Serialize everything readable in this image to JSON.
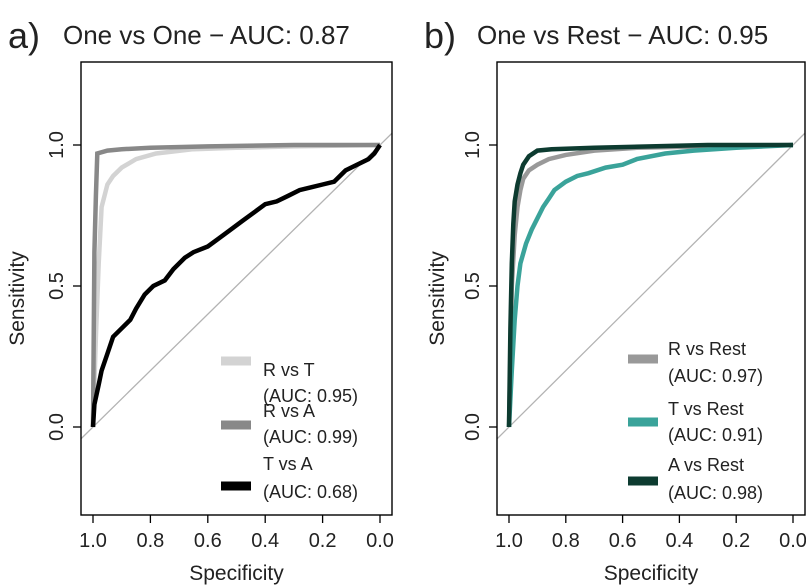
{
  "chart_data": [
    {
      "type": "line",
      "panel": "a)",
      "title": "One vs One − AUC: 0.87",
      "xlabel": "Specificity",
      "ylabel": "Sensitivity",
      "xlim": [
        1.0,
        0.0
      ],
      "ylim": [
        0.0,
        1.0
      ],
      "x_reversed": true,
      "x_ticks": [
        "1.0",
        "0.8",
        "0.6",
        "0.4",
        "0.2",
        "0.0"
      ],
      "y_ticks": [
        "0.0",
        "0.5",
        "1.0"
      ],
      "reference_line": true,
      "legend_position": "bottom-right",
      "series": [
        {
          "name": "R vs T",
          "auc_label": "(AUC: 0.95)",
          "color": "#d3d3d3",
          "points": [
            [
              1.0,
              0.0
            ],
            [
              0.99,
              0.32
            ],
            [
              0.98,
              0.58
            ],
            [
              0.97,
              0.78
            ],
            [
              0.96,
              0.82
            ],
            [
              0.95,
              0.86
            ],
            [
              0.93,
              0.89
            ],
            [
              0.9,
              0.92
            ],
            [
              0.85,
              0.95
            ],
            [
              0.78,
              0.97
            ],
            [
              0.65,
              0.985
            ],
            [
              0.5,
              0.99
            ],
            [
              0.3,
              0.995
            ],
            [
              0.0,
              1.0
            ]
          ]
        },
        {
          "name": "R vs A",
          "auc_label": "(AUC: 0.99)",
          "color": "#888888",
          "points": [
            [
              1.0,
              0.0
            ],
            [
              0.995,
              0.62
            ],
            [
              0.99,
              0.82
            ],
            [
              0.985,
              0.97
            ],
            [
              0.95,
              0.98
            ],
            [
              0.9,
              0.985
            ],
            [
              0.8,
              0.99
            ],
            [
              0.6,
              0.995
            ],
            [
              0.3,
              1.0
            ],
            [
              0.0,
              1.0
            ]
          ]
        },
        {
          "name": "T vs A",
          "auc_label": "(AUC: 0.68)",
          "color": "#000000",
          "points": [
            [
              1.0,
              0.0
            ],
            [
              0.995,
              0.08
            ],
            [
              0.98,
              0.15
            ],
            [
              0.97,
              0.2
            ],
            [
              0.95,
              0.26
            ],
            [
              0.93,
              0.32
            ],
            [
              0.9,
              0.35
            ],
            [
              0.87,
              0.38
            ],
            [
              0.85,
              0.42
            ],
            [
              0.82,
              0.47
            ],
            [
              0.79,
              0.5
            ],
            [
              0.75,
              0.52
            ],
            [
              0.72,
              0.56
            ],
            [
              0.68,
              0.6
            ],
            [
              0.65,
              0.62
            ],
            [
              0.6,
              0.64
            ],
            [
              0.56,
              0.67
            ],
            [
              0.52,
              0.7
            ],
            [
              0.48,
              0.73
            ],
            [
              0.44,
              0.76
            ],
            [
              0.4,
              0.79
            ],
            [
              0.36,
              0.8
            ],
            [
              0.32,
              0.82
            ],
            [
              0.28,
              0.84
            ],
            [
              0.24,
              0.85
            ],
            [
              0.2,
              0.86
            ],
            [
              0.16,
              0.87
            ],
            [
              0.12,
              0.91
            ],
            [
              0.08,
              0.93
            ],
            [
              0.04,
              0.95
            ],
            [
              0.02,
              0.97
            ],
            [
              0.0,
              1.0
            ]
          ]
        }
      ]
    },
    {
      "type": "line",
      "panel": "b)",
      "title": "One vs Rest − AUC: 0.95",
      "xlabel": "Specificity",
      "ylabel": "Sensitivity",
      "xlim": [
        1.0,
        0.0
      ],
      "ylim": [
        0.0,
        1.0
      ],
      "x_reversed": true,
      "x_ticks": [
        "1.0",
        "0.8",
        "0.6",
        "0.4",
        "0.2",
        "0.0"
      ],
      "y_ticks": [
        "0.0",
        "0.5",
        "1.0"
      ],
      "reference_line": true,
      "legend_position": "bottom-right",
      "series": [
        {
          "name": "R vs Rest",
          "auc_label": "(AUC: 0.97)",
          "color": "#999999",
          "points": [
            [
              1.0,
              0.0
            ],
            [
              0.995,
              0.25
            ],
            [
              0.99,
              0.5
            ],
            [
              0.98,
              0.68
            ],
            [
              0.97,
              0.78
            ],
            [
              0.96,
              0.84
            ],
            [
              0.95,
              0.88
            ],
            [
              0.93,
              0.91
            ],
            [
              0.9,
              0.93
            ],
            [
              0.86,
              0.95
            ],
            [
              0.8,
              0.965
            ],
            [
              0.7,
              0.98
            ],
            [
              0.55,
              0.99
            ],
            [
              0.3,
              0.995
            ],
            [
              0.0,
              1.0
            ]
          ]
        },
        {
          "name": "T vs Rest",
          "auc_label": "(AUC: 0.91)",
          "color": "#3aa39a",
          "points": [
            [
              1.0,
              0.0
            ],
            [
              0.99,
              0.2
            ],
            [
              0.98,
              0.38
            ],
            [
              0.97,
              0.5
            ],
            [
              0.96,
              0.58
            ],
            [
              0.94,
              0.65
            ],
            [
              0.92,
              0.7
            ],
            [
              0.9,
              0.74
            ],
            [
              0.88,
              0.78
            ],
            [
              0.86,
              0.81
            ],
            [
              0.84,
              0.84
            ],
            [
              0.8,
              0.87
            ],
            [
              0.76,
              0.89
            ],
            [
              0.72,
              0.9
            ],
            [
              0.66,
              0.92
            ],
            [
              0.6,
              0.93
            ],
            [
              0.55,
              0.95
            ],
            [
              0.45,
              0.97
            ],
            [
              0.35,
              0.98
            ],
            [
              0.2,
              0.99
            ],
            [
              0.0,
              1.0
            ]
          ]
        },
        {
          "name": "A vs Rest",
          "auc_label": "(AUC: 0.98)",
          "color": "#0d3b30",
          "points": [
            [
              1.0,
              0.0
            ],
            [
              0.995,
              0.35
            ],
            [
              0.99,
              0.58
            ],
            [
              0.985,
              0.72
            ],
            [
              0.98,
              0.8
            ],
            [
              0.97,
              0.86
            ],
            [
              0.96,
              0.9
            ],
            [
              0.95,
              0.93
            ],
            [
              0.93,
              0.96
            ],
            [
              0.9,
              0.98
            ],
            [
              0.85,
              0.985
            ],
            [
              0.7,
              0.99
            ],
            [
              0.5,
              0.995
            ],
            [
              0.3,
              1.0
            ],
            [
              0.0,
              1.0
            ]
          ]
        }
      ]
    }
  ]
}
